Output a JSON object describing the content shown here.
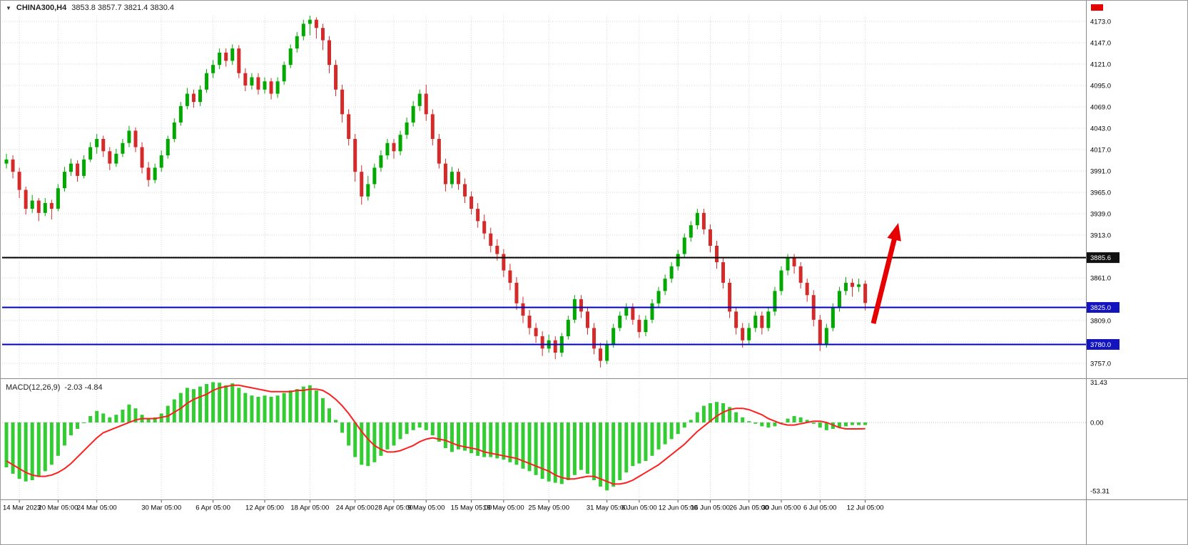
{
  "header": {
    "dropdown_icon": "▼",
    "symbol": "CHINA300,H4",
    "ohlc": "3853.8 3857.7 3821.4 3830.4"
  },
  "indicator_label": {
    "title": "MACD(12,26,9)",
    "values": "-2.03 -4.84"
  },
  "chart_data": {
    "type": "candlestick",
    "title": "CHINA300,H4",
    "symbol": "CHINA300",
    "timeframe": "H4",
    "current_ohlc": {
      "open": 3853.8,
      "high": 3857.7,
      "low": 3821.4,
      "close": 3830.4
    },
    "ylim": [
      3757.0,
      4173.0
    ],
    "grid": true,
    "price_axis": {
      "tick_step": 26,
      "ticks": [
        4173.0,
        4147.0,
        4121.0,
        4095.0,
        4069.0,
        4043.0,
        4017.0,
        3991.0,
        3965.0,
        3939.0,
        3913.0,
        3887.0,
        3861.0,
        3835.0,
        3809.0,
        3783.0,
        3757.0
      ],
      "hidden_ticks": [
        3887.0,
        3835.0,
        3783.0
      ]
    },
    "time_axis": {
      "labels": [
        "14 Mar 2023",
        "20 Mar 05:00",
        "24 Mar 05:00",
        "30 Mar 05:00",
        "6 Apr 05:00",
        "12 Apr 05:00",
        "18 Apr 05:00",
        "24 Apr 05:00",
        "28 Apr 05:00",
        "9 May 05:00",
        "15 May 05:00",
        "19 May 05:00",
        "25 May 05:00",
        "31 May 05:00",
        "6 Jun 05:00",
        "12 Jun 05:00",
        "16 Jun 05:00",
        "26 Jun 05:00",
        "30 Jun 05:00",
        "6 Jul 05:00",
        "12 Jul 05:00"
      ],
      "candle_indices": [
        2,
        8,
        14,
        24,
        32,
        40,
        47,
        54,
        60,
        65,
        72,
        77,
        84,
        93,
        98,
        104,
        109,
        115,
        120,
        126,
        133
      ]
    },
    "hlines": [
      {
        "price": 3885.6,
        "label": "3885.6",
        "color": "#000000",
        "badge": "#111111"
      },
      {
        "price": 3825.0,
        "label": "3825.0",
        "color": "#0000be",
        "badge": "#1414be"
      },
      {
        "price": 3780.0,
        "label": "3780.0",
        "color": "#0000be",
        "badge": "#1414be"
      }
    ],
    "arrow": {
      "x_tail": 1223,
      "y_tail": 453,
      "x_tip": 1258,
      "y_tip": 312,
      "color": "#e60000",
      "width": 7
    },
    "candles": [
      [
        4000,
        4012,
        3994,
        4005
      ],
      [
        4005,
        4010,
        3982,
        3990
      ],
      [
        3990,
        3995,
        3958,
        3968
      ],
      [
        3968,
        3972,
        3938,
        3945
      ],
      [
        3945,
        3962,
        3940,
        3955
      ],
      [
        3955,
        3958,
        3930,
        3940
      ],
      [
        3940,
        3958,
        3936,
        3952
      ],
      [
        3952,
        3956,
        3932,
        3945
      ],
      [
        3945,
        3975,
        3942,
        3970
      ],
      [
        3970,
        3996,
        3966,
        3990
      ],
      [
        3990,
        4006,
        3985,
        4000
      ],
      [
        4000,
        4004,
        3978,
        3985
      ],
      [
        3985,
        4010,
        3982,
        4005
      ],
      [
        4005,
        4026,
        4002,
        4020
      ],
      [
        4020,
        4036,
        4012,
        4030
      ],
      [
        4030,
        4034,
        4008,
        4015
      ],
      [
        4015,
        4020,
        3992,
        4000
      ],
      [
        4000,
        4018,
        3996,
        4012
      ],
      [
        4012,
        4030,
        4008,
        4025
      ],
      [
        4025,
        4046,
        4020,
        4040
      ],
      [
        4040,
        4044,
        4014,
        4020
      ],
      [
        4020,
        4026,
        3988,
        3995
      ],
      [
        3995,
        4002,
        3972,
        3980
      ],
      [
        3980,
        4000,
        3976,
        3995
      ],
      [
        3995,
        4016,
        3990,
        4010
      ],
      [
        4010,
        4034,
        4006,
        4030
      ],
      [
        4030,
        4055,
        4026,
        4050
      ],
      [
        4050,
        4075,
        4046,
        4070
      ],
      [
        4070,
        4092,
        4066,
        4085
      ],
      [
        4085,
        4090,
        4068,
        4075
      ],
      [
        4075,
        4095,
        4070,
        4090
      ],
      [
        4090,
        4115,
        4086,
        4110
      ],
      [
        4110,
        4126,
        4104,
        4120
      ],
      [
        4120,
        4140,
        4115,
        4135
      ],
      [
        4135,
        4140,
        4118,
        4125
      ],
      [
        4125,
        4145,
        4120,
        4140
      ],
      [
        4140,
        4144,
        4104,
        4110
      ],
      [
        4110,
        4116,
        4088,
        4095
      ],
      [
        4095,
        4110,
        4090,
        4105
      ],
      [
        4105,
        4110,
        4084,
        4090
      ],
      [
        4090,
        4105,
        4085,
        4100
      ],
      [
        4100,
        4104,
        4078,
        4085
      ],
      [
        4085,
        4105,
        4080,
        4100
      ],
      [
        4100,
        4124,
        4096,
        4120
      ],
      [
        4120,
        4145,
        4116,
        4140
      ],
      [
        4140,
        4160,
        4135,
        4155
      ],
      [
        4155,
        4175,
        4150,
        4170
      ],
      [
        4170,
        4180,
        4156,
        4175
      ],
      [
        4175,
        4178,
        4152,
        4165
      ],
      [
        4165,
        4170,
        4138,
        4150
      ],
      [
        4150,
        4155,
        4110,
        4120
      ],
      [
        4120,
        4126,
        4082,
        4090
      ],
      [
        4090,
        4096,
        4050,
        4060
      ],
      [
        4060,
        4066,
        4022,
        4030
      ],
      [
        4030,
        4036,
        3978,
        3990
      ],
      [
        3990,
        3998,
        3950,
        3960
      ],
      [
        3960,
        3985,
        3955,
        3975
      ],
      [
        3975,
        4000,
        3970,
        3995
      ],
      [
        3995,
        4016,
        3990,
        4010
      ],
      [
        4010,
        4030,
        4005,
        4025
      ],
      [
        4025,
        4030,
        4006,
        4015
      ],
      [
        4015,
        4040,
        4010,
        4035
      ],
      [
        4035,
        4056,
        4030,
        4050
      ],
      [
        4050,
        4076,
        4045,
        4070
      ],
      [
        4070,
        4090,
        4064,
        4085
      ],
      [
        4085,
        4096,
        4052,
        4060
      ],
      [
        4060,
        4066,
        4022,
        4030
      ],
      [
        4030,
        4036,
        3994,
        4000
      ],
      [
        4000,
        4006,
        3966,
        3975
      ],
      [
        3975,
        3996,
        3970,
        3990
      ],
      [
        3990,
        3994,
        3968,
        3975
      ],
      [
        3975,
        3982,
        3952,
        3960
      ],
      [
        3960,
        3966,
        3938,
        3945
      ],
      [
        3945,
        3952,
        3922,
        3930
      ],
      [
        3930,
        3938,
        3908,
        3915
      ],
      [
        3915,
        3922,
        3892,
        3900
      ],
      [
        3900,
        3908,
        3882,
        3890
      ],
      [
        3890,
        3896,
        3862,
        3870
      ],
      [
        3870,
        3878,
        3846,
        3855
      ],
      [
        3855,
        3862,
        3822,
        3830
      ],
      [
        3830,
        3838,
        3806,
        3815
      ],
      [
        3815,
        3822,
        3792,
        3800
      ],
      [
        3800,
        3806,
        3782,
        3790
      ],
      [
        3790,
        3796,
        3766,
        3775
      ],
      [
        3775,
        3792,
        3770,
        3785
      ],
      [
        3785,
        3790,
        3762,
        3770
      ],
      [
        3770,
        3794,
        3765,
        3790
      ],
      [
        3790,
        3815,
        3786,
        3810
      ],
      [
        3810,
        3840,
        3806,
        3835
      ],
      [
        3835,
        3840,
        3812,
        3820
      ],
      [
        3820,
        3826,
        3792,
        3800
      ],
      [
        3800,
        3806,
        3768,
        3775
      ],
      [
        3775,
        3782,
        3752,
        3760
      ],
      [
        3760,
        3785,
        3756,
        3780
      ],
      [
        3780,
        3805,
        3776,
        3800
      ],
      [
        3800,
        3820,
        3796,
        3815
      ],
      [
        3815,
        3830,
        3810,
        3825
      ],
      [
        3825,
        3830,
        3804,
        3810
      ],
      [
        3810,
        3816,
        3788,
        3795
      ],
      [
        3795,
        3815,
        3790,
        3810
      ],
      [
        3810,
        3835,
        3806,
        3830
      ],
      [
        3830,
        3850,
        3825,
        3845
      ],
      [
        3845,
        3865,
        3840,
        3860
      ],
      [
        3860,
        3880,
        3855,
        3875
      ],
      [
        3875,
        3895,
        3870,
        3890
      ],
      [
        3890,
        3915,
        3886,
        3910
      ],
      [
        3910,
        3930,
        3905,
        3925
      ],
      [
        3925,
        3945,
        3920,
        3940
      ],
      [
        3940,
        3945,
        3914,
        3920
      ],
      [
        3920,
        3926,
        3892,
        3900
      ],
      [
        3900,
        3906,
        3872,
        3880
      ],
      [
        3880,
        3886,
        3848,
        3855
      ],
      [
        3855,
        3860,
        3812,
        3820
      ],
      [
        3820,
        3826,
        3792,
        3800
      ],
      [
        3800,
        3806,
        3776,
        3785
      ],
      [
        3785,
        3806,
        3780,
        3800
      ],
      [
        3800,
        3820,
        3795,
        3815
      ],
      [
        3815,
        3820,
        3792,
        3800
      ],
      [
        3800,
        3826,
        3796,
        3820
      ],
      [
        3820,
        3850,
        3815,
        3845
      ],
      [
        3845,
        3875,
        3840,
        3870
      ],
      [
        3870,
        3890,
        3864,
        3885
      ],
      [
        3885,
        3890,
        3866,
        3875
      ],
      [
        3875,
        3880,
        3848,
        3855
      ],
      [
        3855,
        3860,
        3832,
        3840
      ],
      [
        3840,
        3846,
        3802,
        3810
      ],
      [
        3810,
        3816,
        3772,
        3780
      ],
      [
        3780,
        3805,
        3776,
        3800
      ],
      [
        3800,
        3830,
        3796,
        3825
      ],
      [
        3825,
        3850,
        3820,
        3845
      ],
      [
        3845,
        3862,
        3840,
        3855
      ],
      [
        3855,
        3860,
        3838,
        3850
      ],
      [
        3850,
        3860,
        3844,
        3853
      ],
      [
        3853.8,
        3857.7,
        3821.4,
        3830.4
      ]
    ],
    "macd": {
      "params": "12,26,9",
      "macd_value": -2.03,
      "signal_value": -4.84,
      "ylim": [
        -53.31,
        31.43
      ],
      "axis": [
        {
          "v": 31.43,
          "label": "31.43"
        },
        {
          "v": 0,
          "label": "0.00"
        },
        {
          "v": -53.31,
          "label": "-53.31"
        }
      ],
      "histogram": [
        -35,
        -40,
        -44,
        -46,
        -45,
        -42,
        -38,
        -33,
        -26,
        -18,
        -10,
        -5,
        0,
        5,
        9,
        7,
        4,
        6,
        10,
        14,
        11,
        6,
        3,
        4,
        7,
        13,
        18,
        23,
        27,
        26,
        28,
        30,
        31.4,
        31,
        29,
        30.5,
        27,
        23,
        21,
        20,
        21,
        20,
        21,
        23,
        25,
        26,
        28,
        29,
        25,
        19,
        11,
        2,
        -8,
        -18,
        -27,
        -33,
        -34,
        -31,
        -26,
        -21,
        -18,
        -13,
        -9,
        -6,
        -4,
        -6,
        -10,
        -15,
        -20,
        -23,
        -21,
        -22,
        -24,
        -26,
        -27,
        -27,
        -28,
        -29,
        -31,
        -33,
        -36,
        -38,
        -41,
        -44,
        -46,
        -47,
        -48,
        -45,
        -41,
        -37,
        -40,
        -45,
        -50,
        -53,
        -50,
        -45,
        -39,
        -34,
        -32,
        -30,
        -26,
        -21,
        -17,
        -13,
        -9,
        -4,
        2,
        8,
        13,
        15,
        16,
        15,
        12,
        8,
        4,
        1,
        -1,
        -3,
        -4,
        -3,
        0,
        3,
        5,
        4,
        2,
        -1,
        -4,
        -6,
        -5,
        -4,
        -3,
        -2,
        -2,
        -2.03
      ],
      "signal": [
        -30,
        -33,
        -36,
        -39,
        -41,
        -42,
        -42,
        -41,
        -39,
        -36,
        -32,
        -27,
        -22,
        -17,
        -12,
        -8,
        -6,
        -4,
        -2,
        0,
        2,
        3,
        3,
        3,
        4,
        5,
        8,
        11,
        15,
        18,
        20,
        22,
        25,
        27,
        28,
        29,
        29,
        28,
        27,
        26,
        25,
        24,
        24,
        24,
        24,
        25,
        25,
        26,
        26,
        25,
        22,
        18,
        13,
        7,
        0,
        -7,
        -13,
        -18,
        -21,
        -23,
        -23,
        -22,
        -20,
        -18,
        -15,
        -13,
        -12,
        -13,
        -14,
        -16,
        -18,
        -19,
        -20,
        -21,
        -23,
        -24,
        -25,
        -26,
        -27,
        -28,
        -30,
        -32,
        -34,
        -36,
        -38,
        -41,
        -43,
        -44,
        -44,
        -43,
        -42,
        -42,
        -44,
        -46,
        -48,
        -48,
        -47,
        -45,
        -42,
        -39,
        -36,
        -33,
        -29,
        -25,
        -21,
        -17,
        -12,
        -7,
        -3,
        1,
        5,
        8,
        10,
        11,
        11,
        10,
        8,
        6,
        3,
        1,
        -1,
        -2,
        -2,
        -1,
        0,
        1,
        1,
        0,
        -2,
        -4,
        -5,
        -5,
        -5,
        -4.84
      ]
    },
    "colors": {
      "background": "#ffffff",
      "grid": "#d9d9d9",
      "bull": "#00a800",
      "bear": "#d42a2a",
      "hist": "#33cc33",
      "signal": "#ff1e1e",
      "separator": "#8a8a8a",
      "axis_text": "#000000",
      "hline_black": "#000000",
      "hline_blue": "#0000be",
      "arrow": "#e60000"
    }
  }
}
